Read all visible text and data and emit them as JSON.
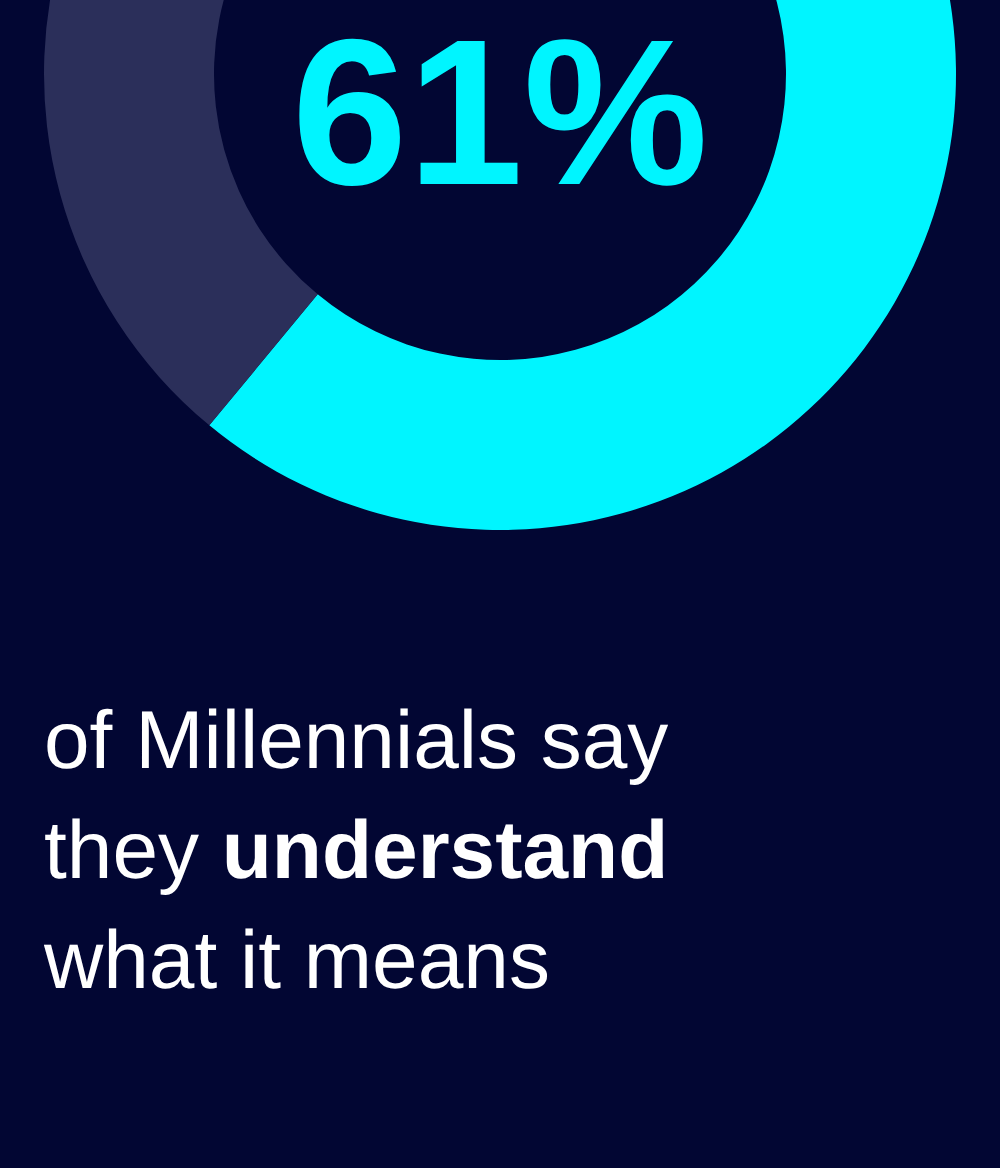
{
  "chart_data": {
    "type": "donut",
    "values": [
      61,
      39
    ],
    "colors": [
      "#00f5ff",
      "#2b2f5a"
    ],
    "value_labels": [
      "61%",
      null
    ],
    "annotations": [
      "of Millennials say",
      "they",
      "understand",
      "what it means"
    ]
  }
}
